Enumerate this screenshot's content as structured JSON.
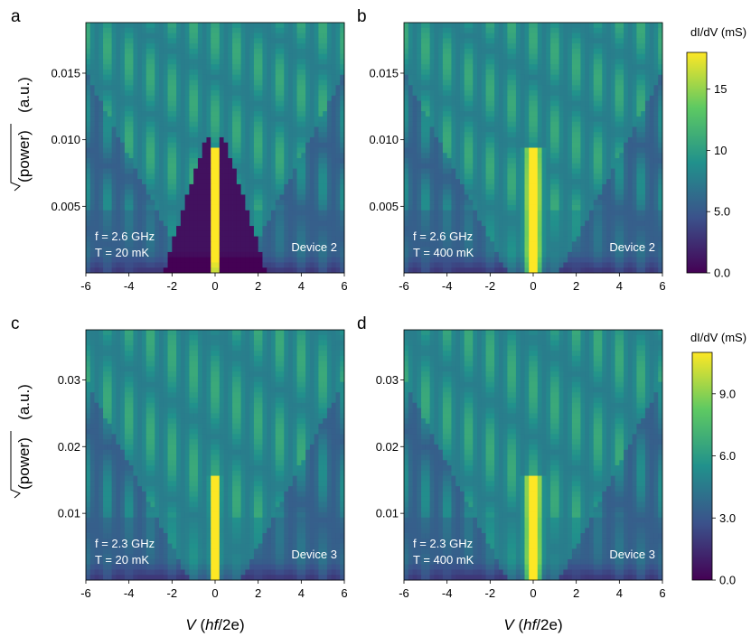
{
  "colormap": [
    "#440154",
    "#3b528b",
    "#21918c",
    "#5ec962",
    "#fde725"
  ],
  "shared": {
    "xlabel_var": "V",
    "xlabel_unit_open": " (",
    "xlabel_unit_italic": "hf",
    "xlabel_unit_close": "/2e)",
    "ylabel": "√(power) (a.u.)",
    "ylabel_text": "(power)",
    "ylabel_unit": "(a.u.)"
  },
  "colorbars": [
    {
      "title": "dI/dV (mS)",
      "ticks": [
        "0.0",
        "5.0",
        "10",
        "15"
      ],
      "tick_values": [
        0,
        5,
        10,
        15
      ],
      "range": [
        0,
        18
      ]
    },
    {
      "title": "dI/dV (mS)",
      "ticks": [
        "0.0",
        "3.0",
        "6.0",
        "9.0"
      ],
      "tick_values": [
        0,
        3,
        6,
        9
      ],
      "range": [
        0,
        11
      ]
    }
  ],
  "chart_data": [
    {
      "type": "heatmap",
      "panel": "a",
      "x": {
        "range": [
          -6,
          6
        ],
        "ticks": [
          "-6",
          "-4",
          "-2",
          "0",
          "2",
          "4",
          "6"
        ],
        "tick_values": [
          -6,
          -4,
          -2,
          0,
          2,
          4,
          6
        ]
      },
      "y": {
        "range": [
          0,
          0.0188
        ],
        "ticks": [
          "0.005",
          "0.010",
          "0.015"
        ],
        "tick_values": [
          0.005,
          0.01,
          0.015
        ]
      },
      "annotation_freq": "f = 2.6 GHz",
      "annotation_temp": "T = 20 mK",
      "device": "Device 2",
      "colorbar": 0
    },
    {
      "type": "heatmap",
      "panel": "b",
      "x": {
        "range": [
          -6,
          6
        ],
        "ticks": [
          "-6",
          "-4",
          "-2",
          "0",
          "2",
          "4",
          "6"
        ],
        "tick_values": [
          -6,
          -4,
          -2,
          0,
          2,
          4,
          6
        ]
      },
      "y": {
        "range": [
          0,
          0.0188
        ],
        "ticks": [
          "0.005",
          "0.010",
          "0.015"
        ],
        "tick_values": [
          0.005,
          0.01,
          0.015
        ]
      },
      "annotation_freq": "f = 2.6 GHz",
      "annotation_temp": "T = 400 mK",
      "device": "Device 2",
      "colorbar": 0
    },
    {
      "type": "heatmap",
      "panel": "c",
      "x": {
        "range": [
          -6,
          6
        ],
        "ticks": [
          "-6",
          "-4",
          "-2",
          "0",
          "2",
          "4",
          "6"
        ],
        "tick_values": [
          -6,
          -4,
          -2,
          0,
          2,
          4,
          6
        ]
      },
      "y": {
        "range": [
          0,
          0.0375
        ],
        "ticks": [
          "0.01",
          "0.02",
          "0.03"
        ],
        "tick_values": [
          0.01,
          0.02,
          0.03
        ]
      },
      "annotation_freq": "f = 2.3 GHz",
      "annotation_temp": "T = 20 mK",
      "device": "Device 3",
      "colorbar": 1
    },
    {
      "type": "heatmap",
      "panel": "d",
      "x": {
        "range": [
          -6,
          6
        ],
        "ticks": [
          "-6",
          "-4",
          "-2",
          "0",
          "2",
          "4",
          "6"
        ],
        "tick_values": [
          -6,
          -4,
          -2,
          0,
          2,
          4,
          6
        ]
      },
      "y": {
        "range": [
          0,
          0.0375
        ],
        "ticks": [
          "0.01",
          "0.02",
          "0.03"
        ],
        "tick_values": [
          0.01,
          0.02,
          0.03
        ]
      },
      "annotation_freq": "f = 2.3 GHz",
      "annotation_temp": "T = 400 mK",
      "device": "Device 3",
      "colorbar": 1
    }
  ]
}
